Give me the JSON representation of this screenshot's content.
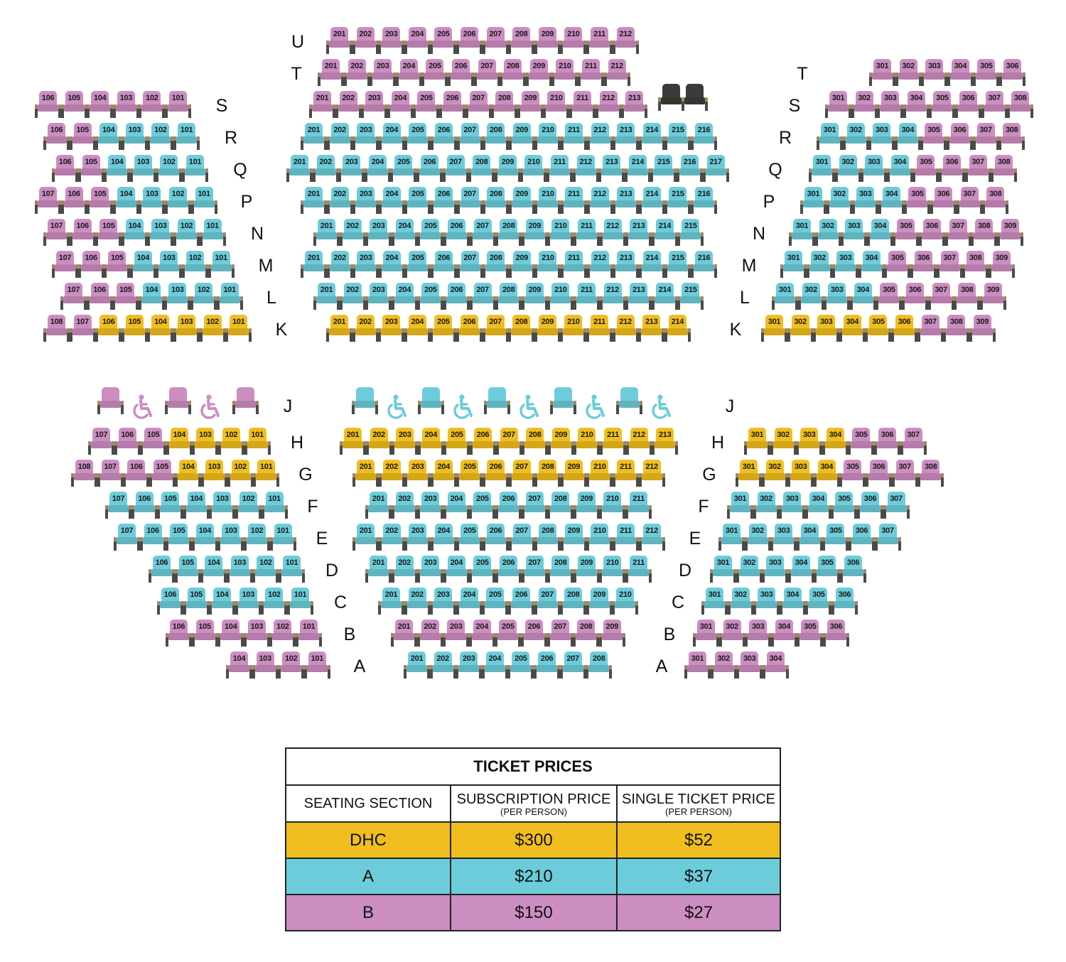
{
  "colors": {
    "dhc": "#f0be1e",
    "a": "#6dccda",
    "b": "#cc8dc1",
    "house": "#3b3b3b",
    "arm": "#a9855a",
    "leg": "#4a4a4a"
  },
  "upper_rows": [
    {
      "row": "U",
      "left": [],
      "center": {
        "from": 201,
        "to": 212,
        "price": "b"
      },
      "right": []
    },
    {
      "row": "T",
      "left": [],
      "center": {
        "from": 201,
        "to": 212,
        "price": "b"
      },
      "right": [
        {
          "from": 301,
          "to": 306,
          "price": "b"
        }
      ]
    },
    {
      "row": "S",
      "left": [
        {
          "from": 106,
          "to": 101,
          "price": "b"
        }
      ],
      "center": {
        "from": 201,
        "to": 213,
        "price": "b"
      },
      "house_seats": 2,
      "right": [
        {
          "from": 301,
          "to": 308,
          "price": "b"
        }
      ]
    },
    {
      "row": "R",
      "left": [
        {
          "from": 106,
          "to": 105,
          "price": "b"
        },
        {
          "from": 104,
          "to": 101,
          "price": "a"
        }
      ],
      "center": {
        "from": 201,
        "to": 216,
        "price": "a"
      },
      "right": [
        {
          "from": 301,
          "to": 304,
          "price": "a"
        },
        {
          "from": 305,
          "to": 308,
          "price": "b"
        }
      ]
    },
    {
      "row": "Q",
      "left": [
        {
          "from": 106,
          "to": 105,
          "price": "b"
        },
        {
          "from": 104,
          "to": 101,
          "price": "a"
        }
      ],
      "center": {
        "from": 201,
        "to": 217,
        "price": "a"
      },
      "right": [
        {
          "from": 301,
          "to": 304,
          "price": "a"
        },
        {
          "from": 305,
          "to": 308,
          "price": "b"
        }
      ]
    },
    {
      "row": "P",
      "left": [
        {
          "from": 107,
          "to": 105,
          "price": "b"
        },
        {
          "from": 104,
          "to": 101,
          "price": "a"
        }
      ],
      "center": {
        "from": 201,
        "to": 216,
        "price": "a"
      },
      "right": [
        {
          "from": 301,
          "to": 304,
          "price": "a"
        },
        {
          "from": 305,
          "to": 308,
          "price": "b"
        }
      ]
    },
    {
      "row": "N",
      "left": [
        {
          "from": 107,
          "to": 105,
          "price": "b"
        },
        {
          "from": 104,
          "to": 101,
          "price": "a"
        }
      ],
      "center": {
        "from": 201,
        "to": 215,
        "price": "a"
      },
      "right": [
        {
          "from": 301,
          "to": 304,
          "price": "a"
        },
        {
          "from": 305,
          "to": 309,
          "price": "b"
        }
      ]
    },
    {
      "row": "M",
      "left": [
        {
          "from": 107,
          "to": 105,
          "price": "b"
        },
        {
          "from": 104,
          "to": 101,
          "price": "a"
        }
      ],
      "center": {
        "from": 201,
        "to": 216,
        "price": "a"
      },
      "right": [
        {
          "from": 301,
          "to": 304,
          "price": "a"
        },
        {
          "from": 305,
          "to": 309,
          "price": "b"
        }
      ]
    },
    {
      "row": "L",
      "left": [
        {
          "from": 107,
          "to": 105,
          "price": "b"
        },
        {
          "from": 104,
          "to": 101,
          "price": "a"
        }
      ],
      "center": {
        "from": 201,
        "to": 215,
        "price": "a"
      },
      "right": [
        {
          "from": 301,
          "to": 304,
          "price": "a"
        },
        {
          "from": 305,
          "to": 309,
          "price": "b"
        }
      ]
    },
    {
      "row": "K",
      "left": [
        {
          "from": 108,
          "to": 107,
          "price": "b"
        },
        {
          "from": 106,
          "to": 101,
          "price": "dhc"
        }
      ],
      "center": {
        "from": 201,
        "to": 214,
        "price": "dhc"
      },
      "right": [
        {
          "from": 301,
          "to": 306,
          "price": "dhc"
        },
        {
          "from": 307,
          "to": 309,
          "price": "b"
        }
      ]
    }
  ],
  "row_j": {
    "row": "J",
    "left": {
      "price": "b",
      "pattern": [
        "seat",
        "wheelchair",
        "seat",
        "wheelchair",
        "seat"
      ]
    },
    "center": {
      "price": "a",
      "pattern": [
        "seat",
        "wheelchair",
        "seat",
        "wheelchair",
        "seat",
        "wheelchair",
        "seat",
        "wheelchair",
        "seat",
        "wheelchair"
      ]
    }
  },
  "lower_rows": [
    {
      "row": "H",
      "left": [
        {
          "from": 107,
          "to": 105,
          "price": "b"
        },
        {
          "from": 104,
          "to": 101,
          "price": "dhc"
        }
      ],
      "center": {
        "from": 201,
        "to": 213,
        "price": "dhc"
      },
      "right": [
        {
          "from": 301,
          "to": 304,
          "price": "dhc"
        },
        {
          "from": 305,
          "to": 307,
          "price": "b"
        }
      ]
    },
    {
      "row": "G",
      "left": [
        {
          "from": 108,
          "to": 105,
          "price": "b"
        },
        {
          "from": 104,
          "to": 101,
          "price": "dhc"
        }
      ],
      "center": {
        "from": 201,
        "to": 212,
        "price": "dhc"
      },
      "right": [
        {
          "from": 301,
          "to": 304,
          "price": "dhc"
        },
        {
          "from": 305,
          "to": 308,
          "price": "b"
        }
      ]
    },
    {
      "row": "F",
      "left": [
        {
          "from": 107,
          "to": 101,
          "price": "a"
        }
      ],
      "center": {
        "from": 201,
        "to": 211,
        "price": "a"
      },
      "right": [
        {
          "from": 301,
          "to": 307,
          "price": "a"
        }
      ]
    },
    {
      "row": "E",
      "left": [
        {
          "from": 107,
          "to": 101,
          "price": "a"
        }
      ],
      "center": {
        "from": 201,
        "to": 212,
        "price": "a"
      },
      "right": [
        {
          "from": 301,
          "to": 307,
          "price": "a"
        }
      ]
    },
    {
      "row": "D",
      "left": [
        {
          "from": 106,
          "to": 101,
          "price": "a"
        }
      ],
      "center": {
        "from": 201,
        "to": 211,
        "price": "a"
      },
      "right": [
        {
          "from": 301,
          "to": 306,
          "price": "a"
        }
      ]
    },
    {
      "row": "C",
      "left": [
        {
          "from": 106,
          "to": 101,
          "price": "a"
        }
      ],
      "center": {
        "from": 201,
        "to": 210,
        "price": "a"
      },
      "right": [
        {
          "from": 301,
          "to": 306,
          "price": "a"
        }
      ]
    },
    {
      "row": "B",
      "left": [
        {
          "from": 106,
          "to": 101,
          "price": "b"
        }
      ],
      "center": {
        "from": 201,
        "to": 209,
        "price": "b"
      },
      "right": [
        {
          "from": 301,
          "to": 306,
          "price": "b"
        }
      ]
    },
    {
      "row": "A",
      "left": [
        {
          "from": 104,
          "to": 101,
          "price": "b"
        }
      ],
      "center": {
        "from": 201,
        "to": 208,
        "price": "a"
      },
      "right": [
        {
          "from": 301,
          "to": 304,
          "price": "b"
        }
      ]
    }
  ],
  "ticket_prices": {
    "title": "TICKET PRICES",
    "headers": {
      "section": "SEATING SECTION",
      "subscription": "SUBSCRIPTION PRICE",
      "subscription_note": "(PER PERSON)",
      "single": "SINGLE TICKET PRICE",
      "single_note": "(PER PERSON)"
    },
    "rows": [
      {
        "section": "DHC",
        "subscription": "$300",
        "single": "$52",
        "color": "#f0be1e"
      },
      {
        "section": "A",
        "subscription": "$210",
        "single": "$37",
        "color": "#6dccda"
      },
      {
        "section": "B",
        "subscription": "$150",
        "single": "$27",
        "color": "#cc8dc1"
      }
    ]
  }
}
